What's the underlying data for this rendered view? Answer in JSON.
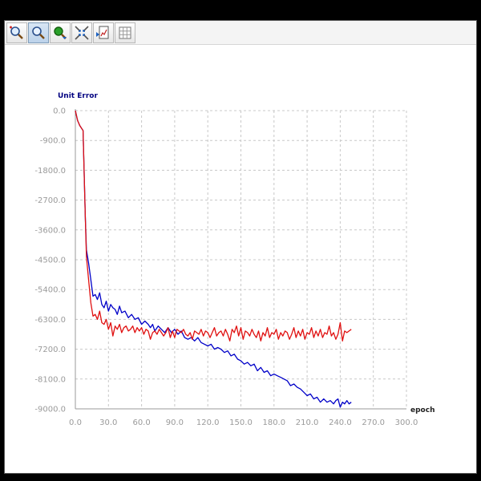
{
  "toolbar": {
    "buttons": [
      {
        "name": "zoom-in-icon",
        "active": false
      },
      {
        "name": "zoom-icon",
        "active": true
      },
      {
        "name": "zoom-reset-icon",
        "active": false
      },
      {
        "name": "fit-icon",
        "active": false
      },
      {
        "name": "export-icon",
        "active": false
      },
      {
        "name": "grid-toggle-icon",
        "active": false
      }
    ]
  },
  "colors": {
    "series_blue": "#0000c8",
    "series_red": "#e01010",
    "grid": "#c8c8c8",
    "axis_title": "#000080"
  },
  "chart_data": {
    "type": "line",
    "title": "",
    "ylabel": "Unit Error",
    "xlabel": "epoch",
    "xlim": [
      0,
      300
    ],
    "ylim": [
      -9000,
      0
    ],
    "x_ticks": [
      "0.0",
      "30.0",
      "60.0",
      "90.0",
      "120.0",
      "150.0",
      "180.0",
      "210.0",
      "240.0",
      "270.0",
      "300.0"
    ],
    "y_ticks": [
      "0.0",
      "-900.0",
      "-1800.0",
      "-2700.0",
      "-3600.0",
      "-4500.0",
      "-5400.0",
      "-6300.0",
      "-7200.0",
      "-8100.0",
      "-9000.0"
    ],
    "grid": true,
    "legend": "none",
    "series": [
      {
        "color": "blue",
        "x": [
          0,
          2,
          4,
          7,
          9,
          10,
          12,
          14,
          16,
          18,
          20,
          22,
          24,
          26,
          28,
          30,
          32,
          34,
          36,
          38,
          40,
          42,
          45,
          48,
          51,
          54,
          57,
          60,
          63,
          66,
          68,
          70,
          72,
          75,
          78,
          81,
          84,
          87,
          90,
          93,
          96,
          99,
          102,
          105,
          108,
          111,
          114,
          117,
          120,
          123,
          126,
          129,
          132,
          135,
          138,
          141,
          144,
          147,
          150,
          153,
          156,
          159,
          162,
          165,
          168,
          171,
          174,
          177,
          180,
          183,
          186,
          189,
          192,
          195,
          198,
          201,
          204,
          207,
          210,
          213,
          216,
          219,
          222,
          225,
          228,
          231,
          234,
          236,
          238,
          240,
          242,
          244,
          246,
          248,
          250
        ],
        "y": [
          0,
          -300,
          -450,
          -600,
          -3200,
          -4200,
          -4600,
          -5100,
          -5600,
          -5550,
          -5700,
          -5500,
          -5850,
          -5950,
          -5750,
          -6050,
          -5850,
          -5950,
          -6000,
          -6150,
          -5900,
          -6100,
          -6050,
          -6250,
          -6150,
          -6300,
          -6250,
          -6450,
          -6350,
          -6450,
          -6550,
          -6450,
          -6650,
          -6500,
          -6600,
          -6700,
          -6550,
          -6700,
          -6600,
          -6750,
          -6650,
          -6850,
          -6900,
          -6850,
          -6950,
          -6850,
          -7000,
          -7050,
          -7100,
          -7050,
          -7200,
          -7150,
          -7200,
          -7300,
          -7250,
          -7400,
          -7350,
          -7500,
          -7550,
          -7650,
          -7600,
          -7700,
          -7650,
          -7850,
          -7750,
          -7900,
          -7850,
          -8000,
          -7950,
          -8000,
          -8050,
          -8100,
          -8150,
          -8300,
          -8250,
          -8350,
          -8400,
          -8500,
          -8600,
          -8550,
          -8700,
          -8650,
          -8800,
          -8700,
          -8800,
          -8750,
          -8850,
          -8750,
          -8700,
          -8950,
          -8800,
          -8850,
          -8750,
          -8850,
          -8800
        ]
      },
      {
        "color": "red",
        "x": [
          0,
          2,
          4,
          7,
          9,
          10,
          12,
          14,
          16,
          18,
          20,
          22,
          24,
          26,
          28,
          30,
          32,
          34,
          36,
          38,
          40,
          42,
          44,
          46,
          48,
          50,
          52,
          54,
          56,
          58,
          60,
          62,
          64,
          66,
          68,
          70,
          72,
          74,
          76,
          78,
          80,
          82,
          84,
          86,
          88,
          90,
          92,
          94,
          96,
          98,
          100,
          102,
          104,
          106,
          108,
          110,
          112,
          114,
          116,
          118,
          120,
          122,
          124,
          126,
          128,
          130,
          132,
          134,
          136,
          138,
          140,
          142,
          144,
          146,
          148,
          150,
          152,
          154,
          156,
          158,
          160,
          162,
          164,
          166,
          168,
          170,
          172,
          174,
          176,
          178,
          180,
          182,
          184,
          186,
          188,
          190,
          192,
          194,
          196,
          198,
          200,
          202,
          204,
          206,
          208,
          210,
          212,
          214,
          216,
          218,
          220,
          222,
          224,
          226,
          228,
          230,
          232,
          234,
          236,
          238,
          240,
          242,
          244,
          246,
          248,
          250
        ],
        "y": [
          0,
          -300,
          -450,
          -600,
          -3200,
          -4400,
          -5100,
          -5800,
          -6200,
          -6150,
          -6300,
          -6050,
          -6400,
          -6450,
          -6300,
          -6600,
          -6400,
          -6800,
          -6500,
          -6600,
          -6450,
          -6700,
          -6550,
          -6500,
          -6650,
          -6600,
          -6500,
          -6700,
          -6550,
          -6650,
          -6550,
          -6750,
          -6600,
          -6650,
          -6900,
          -6700,
          -6650,
          -6750,
          -6600,
          -6700,
          -6800,
          -6700,
          -6550,
          -6850,
          -6650,
          -6850,
          -6600,
          -6650,
          -6700,
          -6600,
          -6750,
          -6800,
          -6700,
          -6900,
          -6650,
          -6700,
          -6750,
          -6600,
          -6800,
          -6650,
          -6700,
          -6850,
          -6700,
          -6550,
          -6800,
          -6700,
          -6650,
          -6800,
          -6600,
          -6750,
          -6950,
          -6600,
          -6700,
          -6500,
          -6800,
          -6550,
          -6900,
          -6650,
          -6700,
          -6800,
          -6600,
          -6750,
          -6850,
          -6650,
          -6950,
          -6700,
          -6800,
          -6550,
          -6850,
          -6700,
          -6750,
          -6600,
          -6900,
          -6700,
          -6800,
          -6650,
          -6700,
          -6900,
          -6750,
          -6550,
          -6850,
          -6650,
          -6800,
          -6600,
          -6900,
          -6700,
          -6750,
          -6550,
          -6850,
          -6650,
          -6800,
          -6600,
          -6850,
          -6700,
          -6750,
          -6500,
          -6800,
          -6700,
          -6900,
          -6750,
          -6400,
          -6950,
          -6650,
          -6700,
          -6650,
          -6600
        ]
      }
    ]
  }
}
